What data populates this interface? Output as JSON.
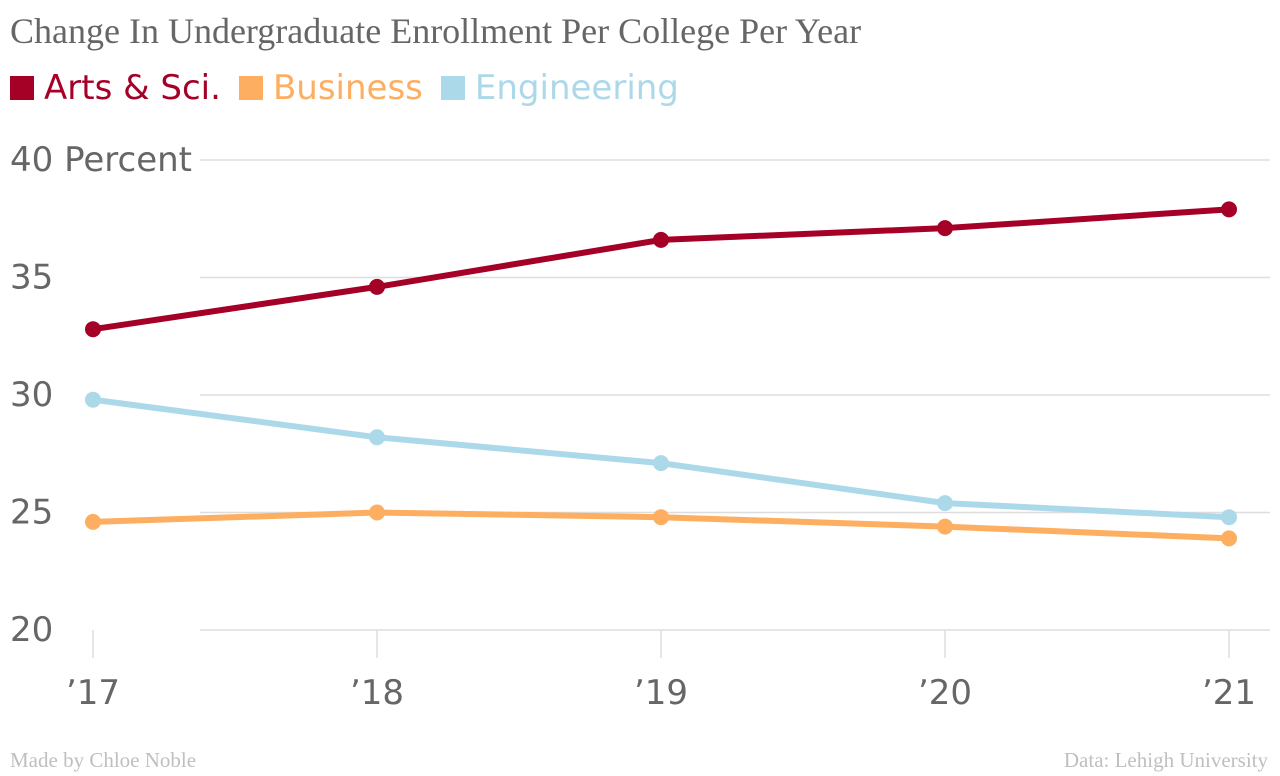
{
  "chart_data": {
    "type": "line",
    "title": "Change In Undergraduate Enrollment Per College Per Year",
    "y_unit": "Percent",
    "categories": [
      "’17",
      "’18",
      "’19",
      "’20",
      "’21"
    ],
    "y_ticks": [
      20,
      25,
      30,
      35,
      40
    ],
    "ylim": [
      20,
      40
    ],
    "grid": true,
    "legend_position": "top-left",
    "series": [
      {
        "name": "Arts & Sci.",
        "color": "#a50026",
        "values": [
          32.8,
          34.6,
          36.6,
          37.1,
          37.9
        ]
      },
      {
        "name": "Business",
        "color": "#fdae61",
        "values": [
          24.6,
          25.0,
          24.8,
          24.4,
          23.9
        ]
      },
      {
        "name": "Engineering",
        "color": "#abd9e9",
        "values": [
          29.8,
          28.2,
          27.1,
          25.4,
          24.8
        ]
      }
    ]
  },
  "footer": {
    "credit": "Made by Chloe Noble",
    "source": "Data: Lehigh University"
  }
}
